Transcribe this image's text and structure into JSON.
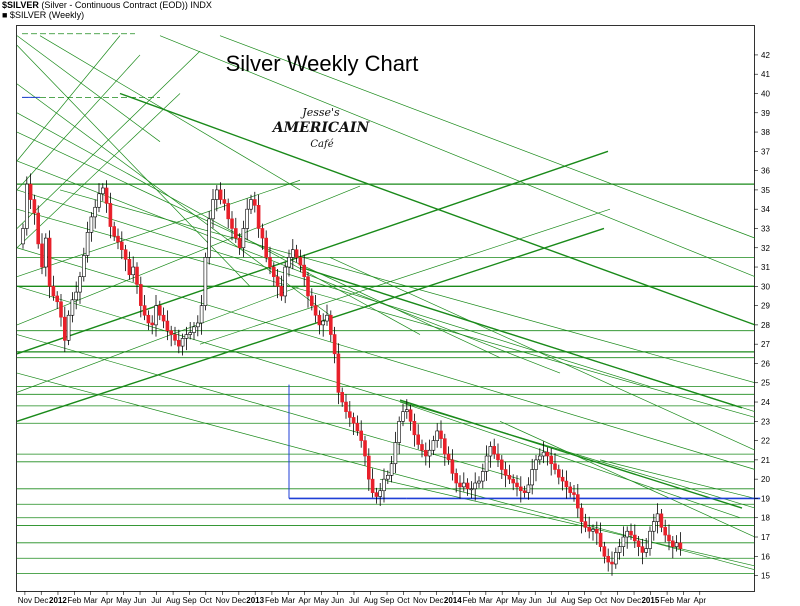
{
  "header": {
    "symbol": "$SILVER",
    "description": "(Silver - Continuous Contract (EOD))",
    "exchange": "INDX",
    "legend": "■ $SILVER (Weekly)"
  },
  "logo": {
    "line1": "Jesse's",
    "line2": "AMERICAIN",
    "line3": "Café"
  },
  "colors": {
    "up": "#ffffff",
    "down": "#e8202a",
    "candle_outline": "#000000",
    "trendline": "#1a8a1a",
    "support": "#1f3fd6"
  },
  "chart_data": {
    "type": "candlestick",
    "title": "Silver Weekly Chart",
    "ylim": [
      14.2,
      43.5
    ],
    "y_ticks": [
      15,
      16,
      17,
      18,
      19,
      20,
      21,
      22,
      23,
      24,
      25,
      26,
      27,
      28,
      29,
      30,
      31,
      32,
      33,
      34,
      35,
      36,
      37,
      38,
      39,
      40,
      41,
      42
    ],
    "x_labels": [
      "Nov",
      "Dec",
      "2012",
      "Feb",
      "Mar",
      "Apr",
      "May",
      "Jun",
      "Jul",
      "Aug",
      "Sep",
      "Oct",
      "Nov",
      "Dec",
      "2013",
      "Feb",
      "Mar",
      "Apr",
      "May",
      "Jun",
      "Jul",
      "Aug",
      "Sep",
      "Oct",
      "Nov",
      "Dec",
      "2014",
      "Feb",
      "Mar",
      "Apr",
      "May",
      "Jun",
      "Jul",
      "Aug",
      "Sep",
      "Oct",
      "Nov",
      "Dec",
      "2015",
      "Feb",
      "Mar",
      "Apr"
    ],
    "x_label_pos": [
      0.5,
      4.8,
      9.2,
      13.5,
      17.8,
      22.1,
      26.5,
      30.8,
      35.1,
      39.5,
      43.8,
      48.1,
      52.5,
      56.8,
      61.1,
      65.5,
      69.8,
      74.1,
      78.5,
      82.8,
      87.1,
      91.5,
      95.8,
      100.1,
      104.5,
      108.8,
      113.1,
      117.5,
      121.8,
      126.1,
      130.5,
      134.8,
      139.1,
      143.5,
      147.8,
      152.1,
      156.5,
      160.8,
      165.1,
      169.5,
      173.8,
      178.1
    ],
    "weekly_close": [
      33,
      35.3,
      34.5,
      33.8,
      32.2,
      31,
      32.5,
      30,
      29.5,
      29.2,
      28.4,
      27.2,
      28.5,
      29.3,
      29.7,
      30.5,
      31.6,
      32.8,
      33.6,
      34.1,
      34.8,
      35.1,
      34.3,
      33.1,
      32.6,
      32.3,
      31.9,
      31.4,
      30.6,
      31,
      30.1,
      29,
      28.5,
      28.1,
      28,
      29,
      28.5,
      28.2,
      27.7,
      27.5,
      27.2,
      26.9,
      27.3,
      27.5,
      27.6,
      27.9,
      28.1,
      29,
      31.5,
      33.5,
      34.5,
      35,
      34.5,
      34.3,
      33.5,
      33,
      32.5,
      32,
      33,
      34,
      34.5,
      34.2,
      33,
      32.5,
      31.5,
      31,
      30.5,
      30,
      29.5,
      31,
      31.5,
      31.9,
      31.5,
      31.1,
      30.5,
      29.5,
      29,
      28.5,
      28,
      28.2,
      28.5,
      27.5,
      26.5,
      24.5,
      24,
      23.5,
      23.2,
      22.9,
      22.5,
      22,
      21.2,
      20,
      19.3,
      19.1,
      19.4,
      20,
      20.2,
      20.8,
      21.9,
      23,
      23.5,
      23.6,
      23,
      22.3,
      21.8,
      21.5,
      21.2,
      21.5,
      22,
      22.5,
      22.1,
      21.3,
      21,
      20.3,
      19.8,
      19.6,
      19.8,
      19.5,
      19.5,
      19.8,
      19.9,
      20.4,
      21.2,
      21.7,
      21.3,
      21,
      20.5,
      20.2,
      20,
      19.8,
      19.6,
      19.4,
      19.3,
      19.7,
      20.5,
      21,
      21.2,
      21.4,
      21.2,
      20.8,
      20.5,
      20.1,
      19.9,
      19.6,
      19.3,
      19.2,
      18.5,
      17.8,
      17.5,
      17.3,
      17.4,
      17.2,
      16.5,
      16,
      15.7,
      15.6,
      16.2,
      16.5,
      17,
      17.3,
      17.1,
      16.8,
      16.5,
      16.2,
      16.4,
      17.3,
      17.8,
      18.2,
      17.5,
      17.1,
      16.8,
      16.5,
      16.7,
      16.4
    ],
    "horizontal_levels": [
      35.3,
      31.5,
      30,
      27.7,
      26.6,
      26.3,
      24.8,
      24.4,
      23.8,
      22.9,
      21.3,
      20.9,
      19.5,
      18.7,
      18,
      17.6,
      16.7,
      15.9,
      15.1
    ],
    "support_lines": [
      {
        "x0": 101,
        "x1": 194,
        "y": 19
      },
      {
        "x0": 70,
        "x1": 101,
        "y": 19
      }
    ],
    "support_vertical": {
      "x": 70,
      "y0": 19,
      "y1": 24.9
    },
    "grid": false,
    "legend_position": "top-left"
  }
}
